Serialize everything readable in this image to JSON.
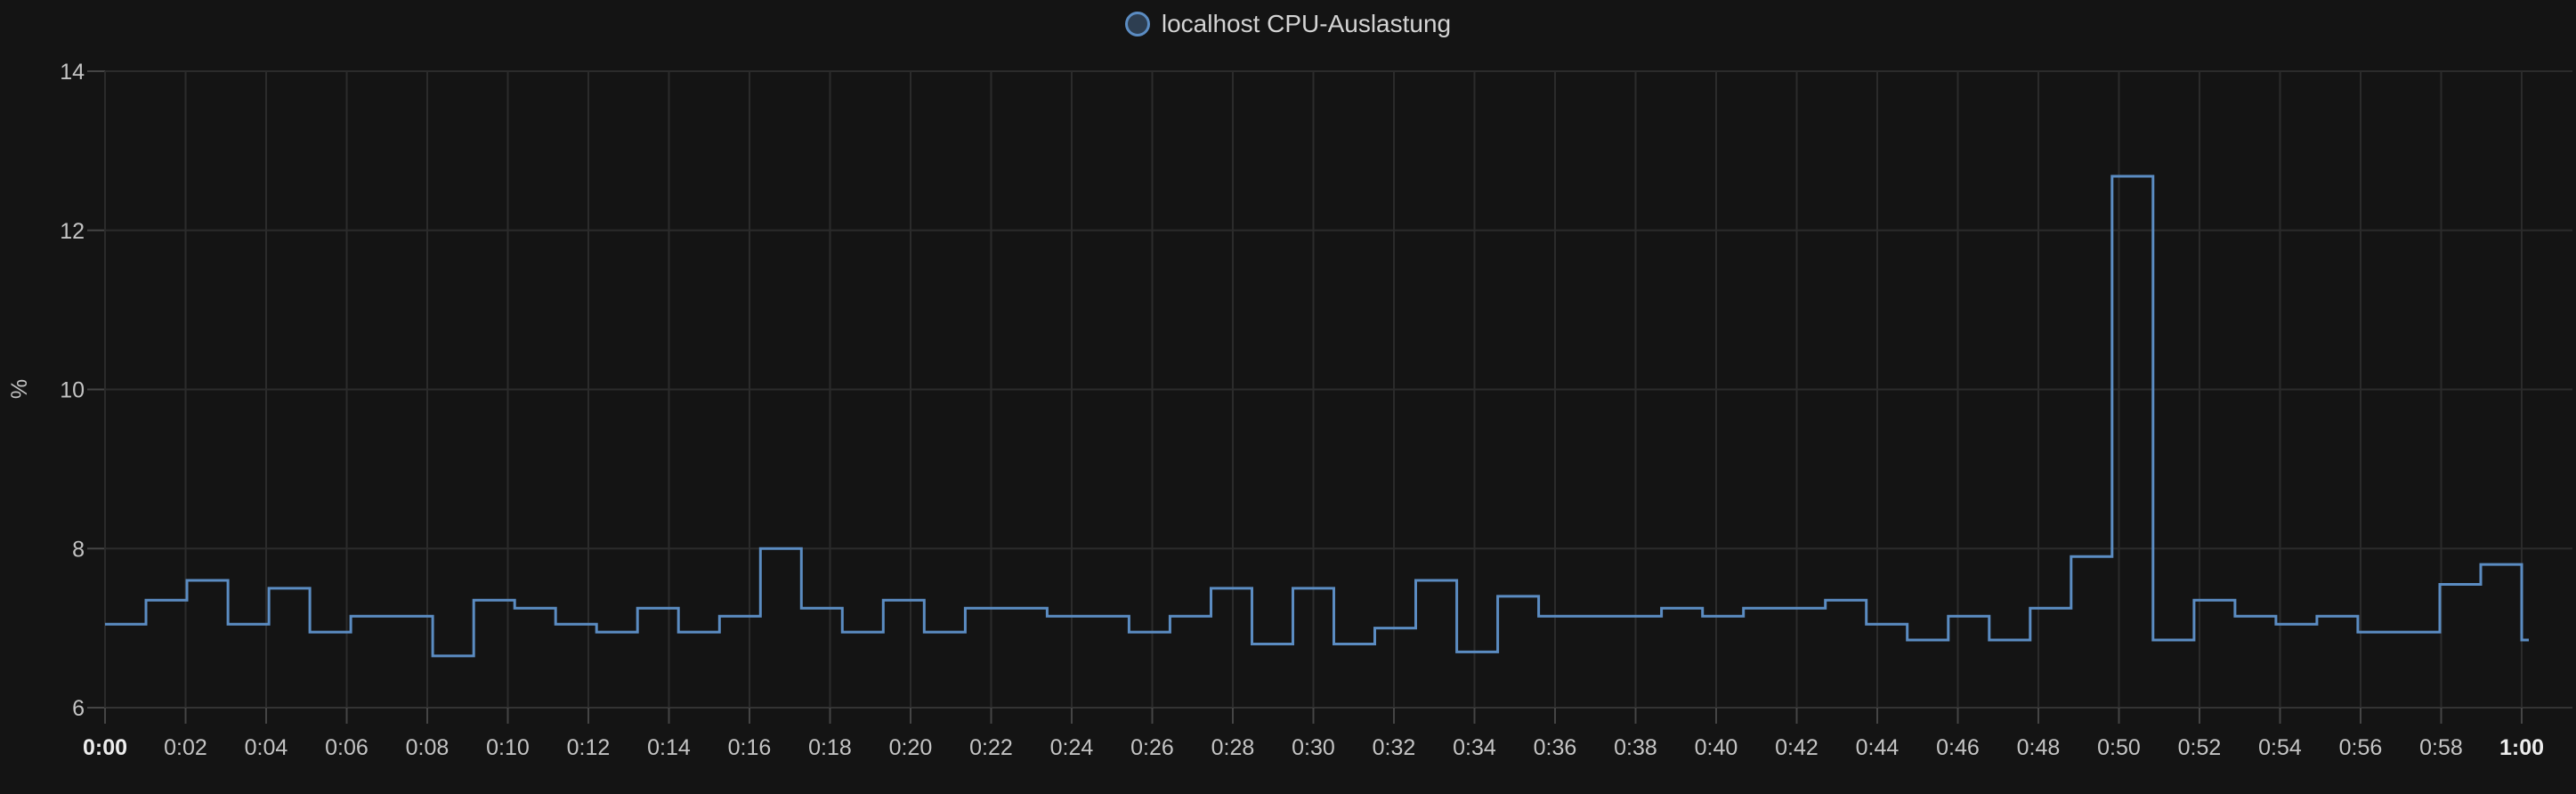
{
  "panel": {
    "title": "localhost CPU-Auslastung"
  },
  "legend": {
    "series_label": "localhost CPU-Auslastung"
  },
  "colors": {
    "background": "#141414",
    "grid": "#2b2b2b",
    "axis_line": "#333333",
    "tick": "#454545",
    "label": "#c4c4c4",
    "label_strong": "#ededed",
    "line": "#5b8cc2",
    "legend_fill": "rgba(91,140,194,0.35)",
    "legend_text": "#d4d4d4"
  },
  "chart_data": {
    "type": "line",
    "step": "after",
    "title": "localhost CPU-Auslastung",
    "xlabel": "",
    "ylabel": "%",
    "ylim": [
      6,
      14
    ],
    "yticks": [
      "14",
      "12",
      "10",
      "8",
      "6"
    ],
    "ytick_values": [
      14,
      12,
      10,
      8,
      6
    ],
    "xticks": [
      "0:00",
      "0:02",
      "0:04",
      "0:06",
      "0:08",
      "0:10",
      "0:12",
      "0:14",
      "0:16",
      "0:18",
      "0:20",
      "0:22",
      "0:24",
      "0:26",
      "0:28",
      "0:30",
      "0:32",
      "0:34",
      "0:36",
      "0:38",
      "0:40",
      "0:42",
      "0:44",
      "0:46",
      "0:48",
      "0:50",
      "0:52",
      "0:54",
      "0:56",
      "0:58",
      "1:00"
    ],
    "xtick_bold": [
      "0:00",
      "1:00"
    ],
    "x_range_minutes": [
      0,
      60
    ],
    "grid": true,
    "legend_position": "top-center",
    "series": [
      {
        "name": "localhost CPU-Auslastung",
        "unit": "%",
        "values": [
          7.05,
          7.35,
          7.6,
          7.05,
          7.5,
          6.95,
          7.15,
          7.15,
          6.65,
          7.35,
          7.25,
          7.05,
          6.95,
          7.25,
          6.95,
          7.15,
          8.0,
          7.25,
          6.95,
          7.35,
          6.95,
          7.25,
          7.25,
          7.15,
          7.15,
          6.95,
          7.15,
          7.5,
          6.8,
          7.5,
          6.8,
          7.0,
          7.6,
          6.7,
          7.4,
          7.15,
          7.15,
          7.15,
          7.25,
          7.15,
          7.25,
          7.25,
          7.35,
          7.05,
          6.85,
          7.15,
          6.85,
          7.25,
          7.9,
          12.68,
          6.85,
          7.35,
          7.15,
          7.05,
          7.15,
          6.95,
          6.95,
          7.55,
          7.8,
          6.85
        ]
      }
    ]
  }
}
